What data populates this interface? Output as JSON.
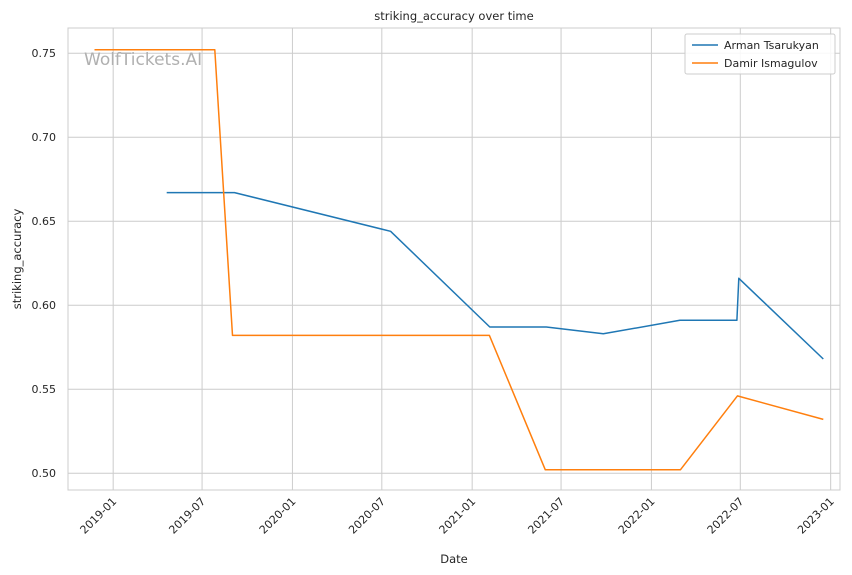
{
  "chart_data": {
    "type": "line",
    "title": "striking_accuracy over time",
    "xlabel": "Date",
    "ylabel": "striking_accuracy",
    "watermark": "WolfTickets.AI",
    "xlim": [
      "2018-10-01",
      "2023-01-20"
    ],
    "ylim": [
      0.49,
      0.765
    ],
    "x_ticks": [
      "2019-01",
      "2019-07",
      "2020-01",
      "2020-07",
      "2021-01",
      "2021-07",
      "2022-01",
      "2022-07",
      "2023-01"
    ],
    "y_ticks": [
      "0.50",
      "0.55",
      "0.60",
      "0.65",
      "0.70",
      "0.75"
    ],
    "grid": true,
    "legend_position": "top-right",
    "series": [
      {
        "name": "Arman Tsarukyan",
        "color": "#1f77b4",
        "points": [
          {
            "x": "2019-04-20",
            "y": 0.667
          },
          {
            "x": "2019-09-05",
            "y": 0.667
          },
          {
            "x": "2020-07-19",
            "y": 0.644
          },
          {
            "x": "2021-02-06",
            "y": 0.587
          },
          {
            "x": "2021-06-01",
            "y": 0.587
          },
          {
            "x": "2021-09-25",
            "y": 0.583
          },
          {
            "x": "2022-02-28",
            "y": 0.591
          },
          {
            "x": "2022-06-24",
            "y": 0.591
          },
          {
            "x": "2022-06-28",
            "y": 0.616
          },
          {
            "x": "2022-12-17",
            "y": 0.568
          }
        ]
      },
      {
        "name": "Damir Ismagulov",
        "color": "#ff7f0e",
        "points": [
          {
            "x": "2018-11-24",
            "y": 0.752
          },
          {
            "x": "2019-07-27",
            "y": 0.752
          },
          {
            "x": "2019-09-01",
            "y": 0.582
          },
          {
            "x": "2021-02-05",
            "y": 0.582
          },
          {
            "x": "2021-05-30",
            "y": 0.502
          },
          {
            "x": "2022-03-01",
            "y": 0.502
          },
          {
            "x": "2022-06-25",
            "y": 0.546
          },
          {
            "x": "2022-12-17",
            "y": 0.532
          }
        ]
      }
    ]
  }
}
